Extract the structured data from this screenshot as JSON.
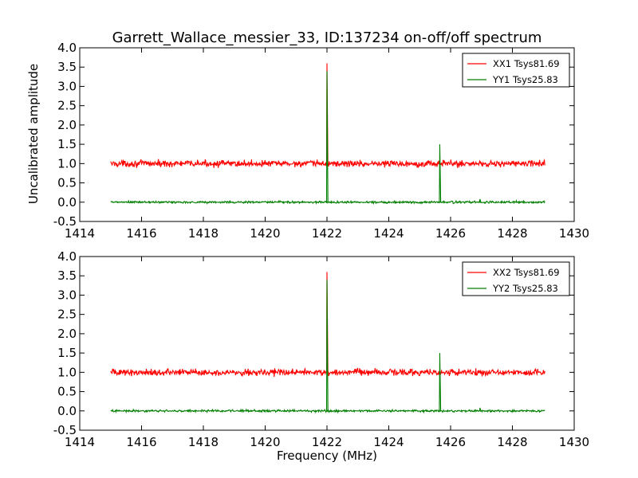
{
  "title": "Garrett_Wallace_messier_33, ID:137234 on-off/off spectrum",
  "ylabel": "Uncalibrated amplitude",
  "xlabel": "Frequency (MHz)",
  "chart_data": [
    {
      "type": "line",
      "title": "Garrett_Wallace_messier_33, ID:137234 on-off/off spectrum",
      "ylabel": "Uncalibrated amplitude",
      "xlabel": "",
      "xlim": [
        1414,
        1430
      ],
      "ylim": [
        -0.5,
        4.0
      ],
      "xticks": [
        1414,
        1416,
        1418,
        1420,
        1422,
        1424,
        1426,
        1428,
        1430
      ],
      "yticks": [
        -0.5,
        0.0,
        0.5,
        1.0,
        1.5,
        2.0,
        2.5,
        3.0,
        3.5,
        4.0
      ],
      "legend_position": "top-right",
      "x_range": [
        1415.0,
        1429.05
      ],
      "series": [
        {
          "name": "XX1 Tsys81.69",
          "color": "#ff0000",
          "baseline": 1.0,
          "noise": 0.06,
          "peaks": [
            {
              "x": 1422.0,
              "y": 3.6
            }
          ]
        },
        {
          "name": "YY1 Tsys25.83",
          "color": "#007f00",
          "baseline": 0.0,
          "noise": 0.02,
          "peaks": [
            {
              "x": 1422.0,
              "y": 3.4
            },
            {
              "x": 1425.65,
              "y": 1.5
            },
            {
              "x": 1426.95,
              "y": 0.08
            }
          ]
        }
      ]
    },
    {
      "type": "line",
      "title": "",
      "ylabel": "",
      "xlabel": "Frequency (MHz)",
      "xlim": [
        1414,
        1430
      ],
      "ylim": [
        -0.5,
        4.0
      ],
      "xticks": [
        1414,
        1416,
        1418,
        1420,
        1422,
        1424,
        1426,
        1428,
        1430
      ],
      "yticks": [
        -0.5,
        0.0,
        0.5,
        1.0,
        1.5,
        2.0,
        2.5,
        3.0,
        3.5,
        4.0
      ],
      "legend_position": "top-right",
      "x_range": [
        1415.0,
        1429.05
      ],
      "series": [
        {
          "name": "XX2 Tsys81.69",
          "color": "#ff0000",
          "baseline": 1.0,
          "noise": 0.06,
          "peaks": [
            {
              "x": 1422.0,
              "y": 3.6
            }
          ]
        },
        {
          "name": "YY2 Tsys25.83",
          "color": "#007f00",
          "baseline": 0.0,
          "noise": 0.02,
          "peaks": [
            {
              "x": 1422.0,
              "y": 3.4
            },
            {
              "x": 1425.65,
              "y": 1.5
            },
            {
              "x": 1426.95,
              "y": 0.08
            }
          ]
        }
      ]
    }
  ]
}
